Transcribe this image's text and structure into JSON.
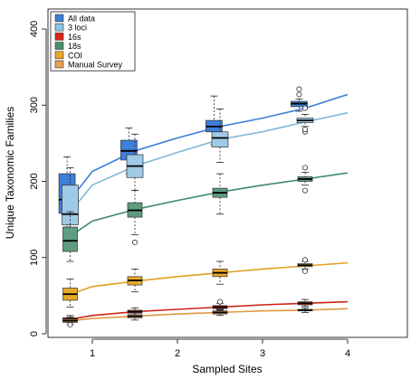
{
  "chart_data": {
    "type": "box",
    "title": "",
    "xlabel": "Sampled Sites",
    "ylabel": "Unique Taxonomic Families",
    "xlim": [
      0.5,
      4.5
    ],
    "ylim": [
      0,
      400
    ],
    "x_ticks": [
      "1",
      "2",
      "3",
      "4"
    ],
    "y_ticks": [
      "0",
      "100",
      "200",
      "300",
      "400"
    ],
    "grid": false,
    "legend_position": "top-left",
    "legend": [
      {
        "name": "All data",
        "color": "#3d7fd9"
      },
      {
        "name": "3 loci",
        "color": "#8ec3e3"
      },
      {
        "name": "16s",
        "color": "#d9261c"
      },
      {
        "name": "18s",
        "color": "#4b8e6e"
      },
      {
        "name": "COI",
        "color": "#e8a92a"
      },
      {
        "name": "Manual Survey",
        "color": "#e6a050"
      }
    ],
    "series": [
      {
        "name": "All data",
        "fill": "#3d7fd9",
        "line": "#3d7fd9",
        "offset": -0.07,
        "curve": [
          [
            1,
            176
          ],
          [
            1.5,
            213
          ],
          [
            2,
            240
          ],
          [
            2.5,
            257
          ],
          [
            3,
            272
          ],
          [
            3.5,
            283
          ],
          [
            4,
            296
          ],
          [
            4.5,
            314
          ]
        ],
        "boxes": [
          {
            "x": 1,
            "wlo": 140,
            "q1": 158,
            "med": 176,
            "q3": 210,
            "whi": 232,
            "outliers": []
          },
          {
            "x": 2,
            "wlo": 210,
            "q1": 228,
            "med": 240,
            "q3": 254,
            "whi": 270,
            "outliers": []
          },
          {
            "x": 3,
            "wlo": 248,
            "q1": 265,
            "med": 272,
            "q3": 280,
            "whi": 312,
            "outliers": []
          },
          {
            "x": 4,
            "wlo": 292,
            "q1": 298,
            "med": 302,
            "q3": 305,
            "whi": 308,
            "outliers": [
              314,
              321
            ]
          }
        ]
      },
      {
        "name": "3 loci",
        "fill": "#9ecae6",
        "line": "#7fb8d8",
        "offset": 0.0,
        "curve": [
          [
            1,
            160
          ],
          [
            1.5,
            195
          ],
          [
            2,
            220
          ],
          [
            2.5,
            238
          ],
          [
            3,
            255
          ],
          [
            3.5,
            265
          ],
          [
            4,
            278
          ],
          [
            4.5,
            290
          ]
        ],
        "boxes": [
          {
            "x": 1,
            "wlo": 125,
            "q1": 143,
            "med": 157,
            "q3": 195,
            "whi": 218,
            "outliers": []
          },
          {
            "x": 2,
            "wlo": 188,
            "q1": 205,
            "med": 220,
            "q3": 235,
            "whi": 262,
            "outliers": []
          },
          {
            "x": 3,
            "wlo": 225,
            "q1": 245,
            "med": 257,
            "q3": 265,
            "whi": 295,
            "outliers": []
          },
          {
            "x": 4,
            "wlo": 272,
            "q1": 277,
            "med": 280,
            "q3": 283,
            "whi": 288,
            "outliers": [
              265,
              268,
              296
            ]
          }
        ]
      },
      {
        "name": "18s",
        "fill": "#5f9c80",
        "line": "#3f8a6a",
        "offset": 0.0,
        "curve": [
          [
            1,
            128
          ],
          [
            1.5,
            148
          ],
          [
            2,
            163
          ],
          [
            2.5,
            175
          ],
          [
            3,
            186
          ],
          [
            3.5,
            195
          ],
          [
            4,
            203
          ],
          [
            4.5,
            211
          ]
        ],
        "boxes": [
          {
            "x": 1,
            "wlo": 95,
            "q1": 108,
            "med": 122,
            "q3": 140,
            "whi": 160,
            "outliers": []
          },
          {
            "x": 2,
            "wlo": 130,
            "q1": 153,
            "med": 162,
            "q3": 172,
            "whi": 188,
            "outliers": [
              120
            ]
          },
          {
            "x": 3,
            "wlo": 157,
            "q1": 179,
            "med": 185,
            "q3": 191,
            "whi": 210,
            "outliers": []
          },
          {
            "x": 4,
            "wlo": 195,
            "q1": 200,
            "med": 203,
            "q3": 206,
            "whi": 212,
            "outliers": [
              188,
              218
            ]
          }
        ]
      },
      {
        "name": "COI",
        "fill": "#e8a92a",
        "line": "#e0a020",
        "offset": 0.0,
        "curve": [
          [
            1,
            52
          ],
          [
            1.5,
            62
          ],
          [
            2,
            69
          ],
          [
            2.5,
            75
          ],
          [
            3,
            80
          ],
          [
            3.5,
            85
          ],
          [
            4,
            89
          ],
          [
            4.5,
            93
          ]
        ],
        "boxes": [
          {
            "x": 1,
            "wlo": 35,
            "q1": 44,
            "med": 52,
            "q3": 60,
            "whi": 72,
            "outliers": []
          },
          {
            "x": 2,
            "wlo": 55,
            "q1": 64,
            "med": 70,
            "q3": 75,
            "whi": 85,
            "outliers": []
          },
          {
            "x": 3,
            "wlo": 65,
            "q1": 75,
            "med": 80,
            "q3": 85,
            "whi": 95,
            "outliers": []
          },
          {
            "x": 4,
            "wlo": 85,
            "q1": 88,
            "med": 90,
            "q3": 92,
            "whi": 95,
            "outliers": [
              82,
              97
            ]
          }
        ]
      },
      {
        "name": "16s",
        "fill": "#d9261c",
        "line": "#cc2318",
        "offset": 0.0,
        "curve": [
          [
            1,
            19
          ],
          [
            1.5,
            24
          ],
          [
            2,
            29
          ],
          [
            2.5,
            32
          ],
          [
            3,
            35
          ],
          [
            3.5,
            38
          ],
          [
            4,
            40
          ],
          [
            4.5,
            42
          ]
        ],
        "boxes": [
          {
            "x": 1,
            "wlo": 15,
            "q1": 17,
            "med": 19,
            "q3": 21,
            "whi": 24,
            "outliers": []
          },
          {
            "x": 2,
            "wlo": 25,
            "q1": 27,
            "med": 29,
            "q3": 31,
            "whi": 34,
            "outliers": []
          },
          {
            "x": 3,
            "wlo": 31,
            "q1": 33,
            "med": 35,
            "q3": 37,
            "whi": 40,
            "outliers": [
              42
            ]
          },
          {
            "x": 4,
            "wlo": 36,
            "q1": 38,
            "med": 40,
            "q3": 42,
            "whi": 45,
            "outliers": []
          }
        ]
      },
      {
        "name": "Manual Survey",
        "fill": "#e6a050",
        "line": "#e09a40",
        "offset": 0.0,
        "curve": [
          [
            1,
            17
          ],
          [
            1.5,
            20
          ],
          [
            2,
            23
          ],
          [
            2.5,
            26
          ],
          [
            3,
            28
          ],
          [
            3.5,
            30
          ],
          [
            4,
            31
          ],
          [
            4.5,
            33
          ]
        ],
        "boxes": [
          {
            "x": 1,
            "wlo": 12,
            "q1": 15,
            "med": 17,
            "q3": 19,
            "whi": 22,
            "outliers": [
              12
            ]
          },
          {
            "x": 2,
            "wlo": 18,
            "q1": 21,
            "med": 23,
            "q3": 25,
            "whi": 28,
            "outliers": []
          },
          {
            "x": 3,
            "wlo": 24,
            "q1": 26,
            "med": 28,
            "q3": 30,
            "whi": 32,
            "outliers": []
          },
          {
            "x": 4,
            "wlo": 28,
            "q1": 30,
            "med": 31,
            "q3": 32,
            "whi": 34,
            "outliers": []
          }
        ]
      }
    ]
  }
}
